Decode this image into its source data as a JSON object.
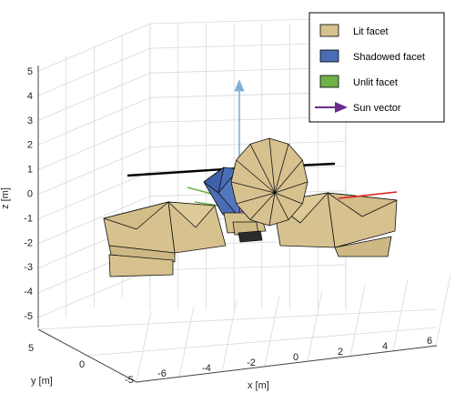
{
  "chart_data": {
    "type": "3d-mesh",
    "axes": {
      "x": {
        "label": "x [m]",
        "ticks": [
          "-6",
          "-4",
          "-2",
          "0",
          "2",
          "4",
          "6"
        ]
      },
      "y": {
        "label": "y [m]",
        "ticks": [
          "5",
          "0",
          "-5"
        ]
      },
      "z": {
        "label": "z [m]",
        "ticks": [
          "5",
          "4",
          "3",
          "2",
          "1",
          "0",
          "-1",
          "-2",
          "-3",
          "-4",
          "-5"
        ]
      }
    },
    "grid": true,
    "legend_position": "top-right",
    "legend": [
      {
        "label": "Lit facet",
        "kind": "patch",
        "color": "#d7c28f"
      },
      {
        "label": "Shadowed facet",
        "kind": "patch",
        "color": "#4a6db6"
      },
      {
        "label": "Unlit facet",
        "kind": "patch",
        "color": "#6fb24a"
      },
      {
        "label": "Sun vector",
        "kind": "arrow",
        "color": "#6a2c91"
      }
    ],
    "colors": {
      "lit": "#d7c28f",
      "shadowed": "#4a6db6",
      "unlit": "#6fb24a",
      "sun": "#6a2c91",
      "z_axis_vector": "#7fb0d8",
      "x_axis_vector": "#e02020",
      "boom": "#000000"
    }
  }
}
